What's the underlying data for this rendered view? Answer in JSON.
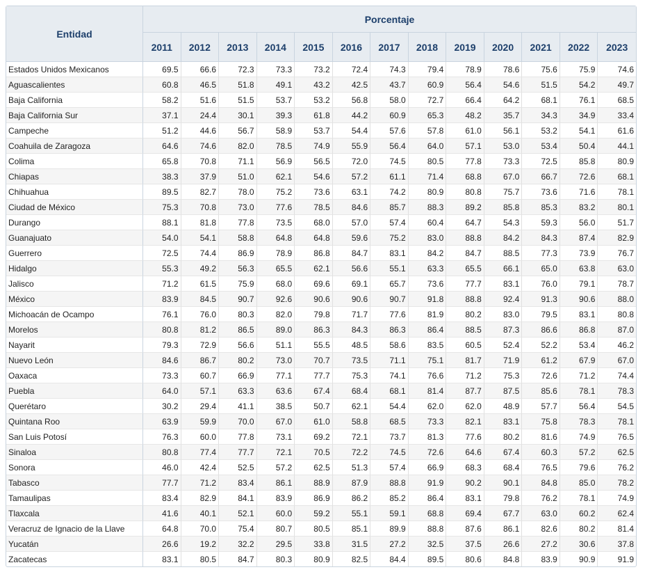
{
  "header": {
    "entity_label": "Entidad",
    "group_label": "Porcentaje",
    "years": [
      "2011",
      "2012",
      "2013",
      "2014",
      "2015",
      "2016",
      "2017",
      "2018",
      "2019",
      "2020",
      "2021",
      "2022",
      "2023"
    ]
  },
  "rows": [
    {
      "name": "Estados Unidos Mexicanos",
      "values": [
        "69.5",
        "66.6",
        "72.3",
        "73.3",
        "73.2",
        "72.4",
        "74.3",
        "79.4",
        "78.9",
        "78.6",
        "75.6",
        "75.9",
        "74.6"
      ]
    },
    {
      "name": "Aguascalientes",
      "values": [
        "60.8",
        "46.5",
        "51.8",
        "49.1",
        "43.2",
        "42.5",
        "43.7",
        "60.9",
        "56.4",
        "54.6",
        "51.5",
        "54.2",
        "49.7"
      ]
    },
    {
      "name": "Baja California",
      "values": [
        "58.2",
        "51.6",
        "51.5",
        "53.7",
        "53.2",
        "56.8",
        "58.0",
        "72.7",
        "66.4",
        "64.2",
        "68.1",
        "76.1",
        "68.5"
      ]
    },
    {
      "name": "Baja California Sur",
      "values": [
        "37.1",
        "24.4",
        "30.1",
        "39.3",
        "61.8",
        "44.2",
        "60.9",
        "65.3",
        "48.2",
        "35.7",
        "34.3",
        "34.9",
        "33.4"
      ]
    },
    {
      "name": "Campeche",
      "values": [
        "51.2",
        "44.6",
        "56.7",
        "58.9",
        "53.7",
        "54.4",
        "57.6",
        "57.8",
        "61.0",
        "56.1",
        "53.2",
        "54.1",
        "61.6"
      ]
    },
    {
      "name": "Coahuila de Zaragoza",
      "values": [
        "64.6",
        "74.6",
        "82.0",
        "78.5",
        "74.9",
        "55.9",
        "56.4",
        "64.0",
        "57.1",
        "53.0",
        "53.4",
        "50.4",
        "44.1"
      ]
    },
    {
      "name": "Colima",
      "values": [
        "65.8",
        "70.8",
        "71.1",
        "56.9",
        "56.5",
        "72.0",
        "74.5",
        "80.5",
        "77.8",
        "73.3",
        "72.5",
        "85.8",
        "80.9"
      ]
    },
    {
      "name": "Chiapas",
      "values": [
        "38.3",
        "37.9",
        "51.0",
        "62.1",
        "54.6",
        "57.2",
        "61.1",
        "71.4",
        "68.8",
        "67.0",
        "66.7",
        "72.6",
        "68.1"
      ]
    },
    {
      "name": "Chihuahua",
      "values": [
        "89.5",
        "82.7",
        "78.0",
        "75.2",
        "73.6",
        "63.1",
        "74.2",
        "80.9",
        "80.8",
        "75.7",
        "73.6",
        "71.6",
        "78.1"
      ]
    },
    {
      "name": "Ciudad de México",
      "values": [
        "75.3",
        "70.8",
        "73.0",
        "77.6",
        "78.5",
        "84.6",
        "85.7",
        "88.3",
        "89.2",
        "85.8",
        "85.3",
        "83.2",
        "80.1"
      ]
    },
    {
      "name": "Durango",
      "values": [
        "88.1",
        "81.8",
        "77.8",
        "73.5",
        "68.0",
        "57.0",
        "57.4",
        "60.4",
        "64.7",
        "54.3",
        "59.3",
        "56.0",
        "51.7"
      ]
    },
    {
      "name": "Guanajuato",
      "values": [
        "54.0",
        "54.1",
        "58.8",
        "64.8",
        "64.8",
        "59.6",
        "75.2",
        "83.0",
        "88.8",
        "84.2",
        "84.3",
        "87.4",
        "82.9"
      ]
    },
    {
      "name": "Guerrero",
      "values": [
        "72.5",
        "74.4",
        "86.9",
        "78.9",
        "86.8",
        "84.7",
        "83.1",
        "84.2",
        "84.7",
        "88.5",
        "77.3",
        "73.9",
        "76.7"
      ]
    },
    {
      "name": "Hidalgo",
      "values": [
        "55.3",
        "49.2",
        "56.3",
        "65.5",
        "62.1",
        "56.6",
        "55.1",
        "63.3",
        "65.5",
        "66.1",
        "65.0",
        "63.8",
        "63.0"
      ]
    },
    {
      "name": "Jalisco",
      "values": [
        "71.2",
        "61.5",
        "75.9",
        "68.0",
        "69.6",
        "69.1",
        "65.7",
        "73.6",
        "77.7",
        "83.1",
        "76.0",
        "79.1",
        "78.7"
      ]
    },
    {
      "name": "México",
      "values": [
        "83.9",
        "84.5",
        "90.7",
        "92.6",
        "90.6",
        "90.6",
        "90.7",
        "91.8",
        "88.8",
        "92.4",
        "91.3",
        "90.6",
        "88.0"
      ]
    },
    {
      "name": "Michoacán de Ocampo",
      "values": [
        "76.1",
        "76.0",
        "80.3",
        "82.0",
        "79.8",
        "71.7",
        "77.6",
        "81.9",
        "80.2",
        "83.0",
        "79.5",
        "83.1",
        "80.8"
      ]
    },
    {
      "name": "Morelos",
      "values": [
        "80.8",
        "81.2",
        "86.5",
        "89.0",
        "86.3",
        "84.3",
        "86.3",
        "86.4",
        "88.5",
        "87.3",
        "86.6",
        "86.8",
        "87.0"
      ]
    },
    {
      "name": "Nayarit",
      "values": [
        "79.3",
        "72.9",
        "56.6",
        "51.1",
        "55.5",
        "48.5",
        "58.6",
        "83.5",
        "60.5",
        "52.4",
        "52.2",
        "53.4",
        "46.2"
      ]
    },
    {
      "name": "Nuevo León",
      "values": [
        "84.6",
        "86.7",
        "80.2",
        "73.0",
        "70.7",
        "73.5",
        "71.1",
        "75.1",
        "81.7",
        "71.9",
        "61.2",
        "67.9",
        "67.0"
      ]
    },
    {
      "name": "Oaxaca",
      "values": [
        "73.3",
        "60.7",
        "66.9",
        "77.1",
        "77.7",
        "75.3",
        "74.1",
        "76.6",
        "71.2",
        "75.3",
        "72.6",
        "71.2",
        "74.4"
      ]
    },
    {
      "name": "Puebla",
      "values": [
        "64.0",
        "57.1",
        "63.3",
        "63.6",
        "67.4",
        "68.4",
        "68.1",
        "81.4",
        "87.7",
        "87.5",
        "85.6",
        "78.1",
        "78.3"
      ]
    },
    {
      "name": "Querétaro",
      "values": [
        "30.2",
        "29.4",
        "41.1",
        "38.5",
        "50.7",
        "62.1",
        "54.4",
        "62.0",
        "62.0",
        "48.9",
        "57.7",
        "56.4",
        "54.5"
      ]
    },
    {
      "name": "Quintana Roo",
      "values": [
        "63.9",
        "59.9",
        "70.0",
        "67.0",
        "61.0",
        "58.8",
        "68.5",
        "73.3",
        "82.1",
        "83.1",
        "75.8",
        "78.3",
        "78.1"
      ]
    },
    {
      "name": "San Luis Potosí",
      "values": [
        "76.3",
        "60.0",
        "77.8",
        "73.1",
        "69.2",
        "72.1",
        "73.7",
        "81.3",
        "77.6",
        "80.2",
        "81.6",
        "74.9",
        "76.5"
      ]
    },
    {
      "name": "Sinaloa",
      "values": [
        "80.8",
        "77.4",
        "77.7",
        "72.1",
        "70.5",
        "72.2",
        "74.5",
        "72.6",
        "64.6",
        "67.4",
        "60.3",
        "57.2",
        "62.5"
      ]
    },
    {
      "name": "Sonora",
      "values": [
        "46.0",
        "42.4",
        "52.5",
        "57.2",
        "62.5",
        "51.3",
        "57.4",
        "66.9",
        "68.3",
        "68.4",
        "76.5",
        "79.6",
        "76.2"
      ]
    },
    {
      "name": "Tabasco",
      "values": [
        "77.7",
        "71.2",
        "83.4",
        "86.1",
        "88.9",
        "87.9",
        "88.8",
        "91.9",
        "90.2",
        "90.1",
        "84.8",
        "85.0",
        "78.2"
      ]
    },
    {
      "name": "Tamaulipas",
      "values": [
        "83.4",
        "82.9",
        "84.1",
        "83.9",
        "86.9",
        "86.2",
        "85.2",
        "86.4",
        "83.1",
        "79.8",
        "76.2",
        "78.1",
        "74.9"
      ]
    },
    {
      "name": "Tlaxcala",
      "values": [
        "41.6",
        "40.1",
        "52.1",
        "60.0",
        "59.2",
        "55.1",
        "59.1",
        "68.8",
        "69.4",
        "67.7",
        "63.0",
        "60.2",
        "62.4"
      ]
    },
    {
      "name": "Veracruz de Ignacio de la Llave",
      "values": [
        "64.8",
        "70.0",
        "75.4",
        "80.7",
        "80.5",
        "85.1",
        "89.9",
        "88.8",
        "87.6",
        "86.1",
        "82.6",
        "80.2",
        "81.4"
      ]
    },
    {
      "name": "Yucatán",
      "values": [
        "26.6",
        "19.2",
        "32.2",
        "29.5",
        "33.8",
        "31.5",
        "27.2",
        "32.5",
        "37.5",
        "26.6",
        "27.2",
        "30.6",
        "37.8"
      ]
    },
    {
      "name": "Zacatecas",
      "values": [
        "83.1",
        "80.5",
        "84.7",
        "80.3",
        "80.9",
        "82.5",
        "84.4",
        "89.5",
        "80.6",
        "84.8",
        "83.9",
        "90.9",
        "91.9"
      ]
    }
  ]
}
